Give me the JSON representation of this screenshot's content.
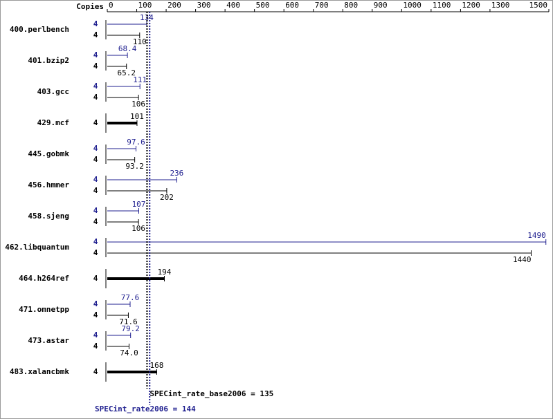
{
  "chart_data": {
    "type": "spec-bar",
    "copies_label": "Copies",
    "categories": [
      "400.perlbench",
      "401.bzip2",
      "403.gcc",
      "429.mcf",
      "445.gobmk",
      "456.hmmer",
      "458.sjeng",
      "462.libquantum",
      "464.h264ref",
      "471.omnetpp",
      "473.astar",
      "483.xalancbmk"
    ],
    "series": [
      {
        "name": "peak",
        "color": "#1f1f8f",
        "copies": [
          4,
          4,
          4,
          null,
          4,
          4,
          4,
          4,
          null,
          4,
          4,
          null
        ],
        "values": [
          134,
          68.4,
          111,
          null,
          97.6,
          236,
          107,
          1490,
          null,
          77.6,
          79.2,
          null
        ]
      },
      {
        "name": "base",
        "color": "#000000",
        "copies": [
          4,
          4,
          4,
          4,
          4,
          4,
          4,
          4,
          4,
          4,
          4,
          4
        ],
        "values": [
          110,
          65.2,
          106,
          101,
          93.2,
          202,
          106,
          1440,
          194,
          71.6,
          74,
          168
        ],
        "value_labels": [
          "110",
          "65.2",
          "106",
          "101",
          "93.2",
          "202",
          "106",
          "1440",
          "194",
          "71.6",
          "74.0",
          "168"
        ]
      }
    ],
    "xlim": [
      0,
      1500
    ],
    "xticks": [
      0,
      100,
      200,
      300,
      400,
      500,
      600,
      700,
      800,
      900,
      1000,
      1100,
      1200,
      1300,
      1500
    ],
    "annotations": [
      {
        "text": "SPECint_rate_base2006 = 135",
        "value": 135,
        "series": "base"
      },
      {
        "text": "SPECint_rate2006 = 144",
        "value": 144,
        "series": "peak"
      }
    ]
  }
}
